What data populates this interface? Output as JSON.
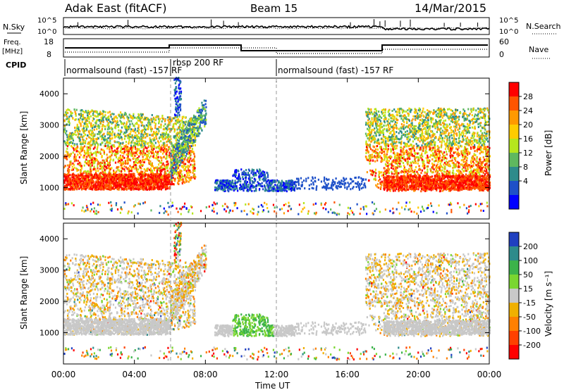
{
  "header": {
    "radar": "Adak East (fitACF)",
    "beam": "Beam 15",
    "date": "14/Mar/2015"
  },
  "top_panel": {
    "nsky_label": "N.Sky",
    "nsearch_label": "N.Search",
    "y_ticks_left": [
      "10^5",
      "10^0"
    ],
    "y_ticks_right": [
      "10^5",
      "10^0"
    ]
  },
  "freq_panel": {
    "freq_label": "Freq.",
    "freq_unit": "[MHz]",
    "nave_label": "Nave",
    "left_ticks": [
      "18",
      "8"
    ],
    "right_ticks": [
      "60",
      "0"
    ]
  },
  "cpid": {
    "label": "CPID",
    "segments": [
      {
        "label": "normalsound (fast) -157 RF",
        "start_h": 0
      },
      {
        "label": "rbsp 200 RF",
        "start_h": 6
      },
      {
        "label": "normalsound (fast) -157 RF",
        "start_h": 12
      }
    ]
  },
  "chart_data": [
    {
      "type": "heatmap",
      "parameter": "power",
      "ylabel": "Slant Range [km]",
      "y_ticks": [
        1000,
        2000,
        3000,
        4000
      ],
      "ylim": [
        0,
        4500
      ],
      "xlim_hours": [
        0,
        24
      ],
      "colorbar_label": "Power [dB]",
      "colorbar_ticks": [
        "28",
        "24",
        "20",
        "16",
        "12",
        "8",
        "4"
      ],
      "colorbar_colors": [
        "#ff0000",
        "#ff5500",
        "#ff9900",
        "#ffcc00",
        "#b5e61d",
        "#5fb85f",
        "#2e8b8b",
        "#1e50c8",
        "#0000ff"
      ]
    },
    {
      "type": "heatmap",
      "parameter": "velocity",
      "ylabel": "Slant Range [km]",
      "y_ticks": [
        1000,
        2000,
        3000,
        4000
      ],
      "ylim": [
        0,
        4500
      ],
      "xlim_hours": [
        0,
        24
      ],
      "xlabel": "Time UT",
      "x_ticks": [
        "00:00",
        "04:00",
        "08:00",
        "12:00",
        "16:00",
        "20:00",
        "00:00"
      ],
      "colorbar_label": "Velocity [m s⁻¹]",
      "colorbar_ticks": [
        "200",
        "100",
        "50",
        "15",
        "-15",
        "-50",
        "-100",
        "-200"
      ],
      "colorbar_colors": [
        "#2040c0",
        "#2e8b8b",
        "#3cb34a",
        "#7ad630",
        "#c8c8c8",
        "#f0b000",
        "#ff8000",
        "#ff4000",
        "#ff0000"
      ]
    }
  ]
}
